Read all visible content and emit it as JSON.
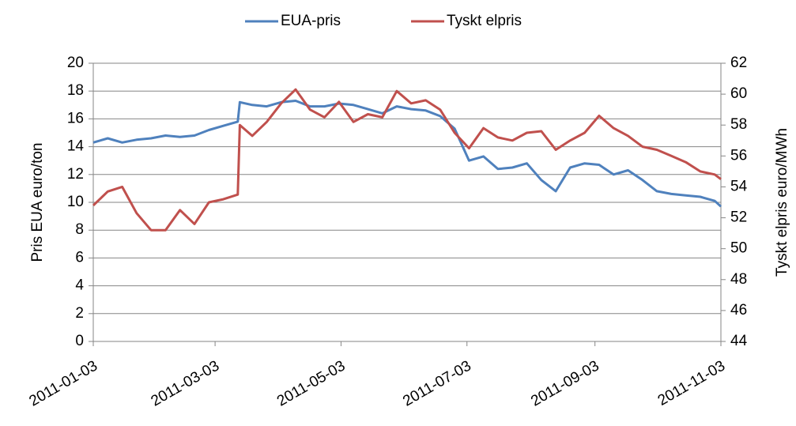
{
  "chart_data": {
    "type": "line",
    "ylabel": "Pris EUA euro/ton",
    "y2label": "Tyskt elpris euro/MWh",
    "x": [
      "2011-01-03",
      "2011-01-10",
      "2011-01-17",
      "2011-01-24",
      "2011-01-31",
      "2011-02-07",
      "2011-02-14",
      "2011-02-21",
      "2011-02-28",
      "2011-03-07",
      "2011-03-14",
      "2011-03-15",
      "2011-03-21",
      "2011-03-28",
      "2011-04-04",
      "2011-04-11",
      "2011-04-18",
      "2011-04-25",
      "2011-05-02",
      "2011-05-09",
      "2011-05-16",
      "2011-05-23",
      "2011-05-30",
      "2011-06-06",
      "2011-06-13",
      "2011-06-20",
      "2011-06-27",
      "2011-07-04",
      "2011-07-11",
      "2011-07-18",
      "2011-07-25",
      "2011-08-01",
      "2011-08-08",
      "2011-08-15",
      "2011-08-22",
      "2011-08-29",
      "2011-09-05",
      "2011-09-12",
      "2011-09-19",
      "2011-09-26",
      "2011-10-03",
      "2011-10-10",
      "2011-10-17",
      "2011-10-24",
      "2011-10-31",
      "2011-11-03"
    ],
    "series": [
      {
        "name": "EUA-pris",
        "color": "#4f81bd",
        "values": [
          14.3,
          14.6,
          14.3,
          14.5,
          14.6,
          14.8,
          14.7,
          14.8,
          15.2,
          15.5,
          15.8,
          17.2,
          17.0,
          16.9,
          17.2,
          17.3,
          16.9,
          16.9,
          17.1,
          17.0,
          16.7,
          16.4,
          16.9,
          16.7,
          16.6,
          16.2,
          15.3,
          13.0,
          13.3,
          12.4,
          12.5,
          12.8,
          11.6,
          10.8,
          12.5,
          12.8,
          12.7,
          12.0,
          12.3,
          11.6,
          10.8,
          10.6,
          10.5,
          10.4,
          10.1,
          9.7
        ]
      },
      {
        "name": "Tyskt elpris",
        "color": "#c0504d",
        "axis": "y2",
        "values": [
          52.8,
          53.7,
          54.0,
          52.3,
          51.2,
          51.2,
          52.5,
          51.6,
          53.0,
          53.2,
          53.5,
          58.0,
          57.3,
          58.2,
          59.4,
          60.3,
          59.0,
          58.5,
          59.5,
          58.2,
          58.7,
          58.5,
          60.2,
          59.4,
          59.6,
          59.0,
          57.5,
          56.5,
          57.8,
          57.2,
          57.0,
          57.5,
          57.6,
          56.4,
          57.0,
          57.5,
          58.6,
          57.8,
          57.3,
          56.6,
          56.4,
          56.0,
          55.6,
          55.0,
          54.8,
          54.5
        ]
      }
    ],
    "xlim": [
      "2011-01-03",
      "2011-11-03"
    ],
    "xticks": [
      "2011-01-03",
      "2011-03-03",
      "2011-05-03",
      "2011-07-03",
      "2011-09-03",
      "2011-11-03"
    ],
    "ylim": [
      0,
      20
    ],
    "yticks": [
      0,
      2,
      4,
      6,
      8,
      10,
      12,
      14,
      16,
      18,
      20
    ],
    "y2lim": [
      44,
      62
    ],
    "y2ticks": [
      44,
      46,
      48,
      50,
      52,
      54,
      56,
      58,
      60,
      62
    ],
    "grid": true,
    "legend": "top"
  }
}
